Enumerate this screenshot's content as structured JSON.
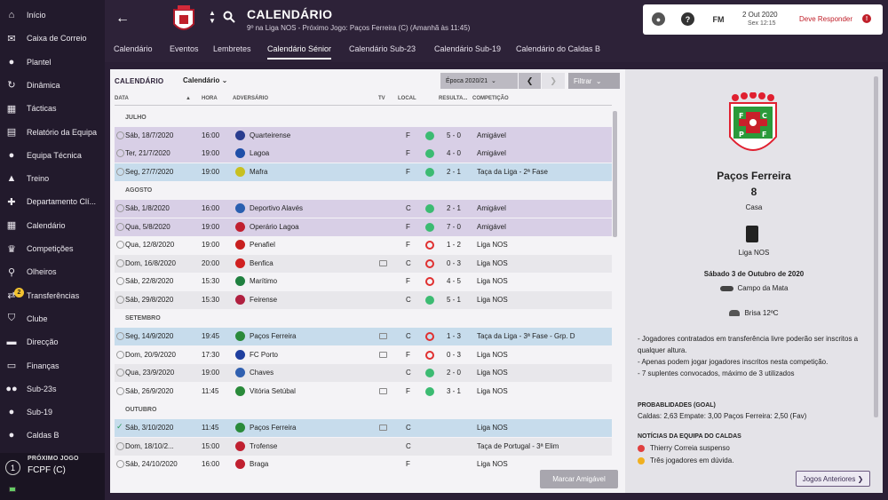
{
  "sidebar": {
    "items": [
      {
        "label": "Início",
        "icon": "home-icon"
      },
      {
        "label": "Caixa de Correio",
        "icon": "inbox-icon"
      },
      {
        "label": "Plantel",
        "icon": "squad-icon"
      },
      {
        "label": "Dinâmica",
        "icon": "dynamics-icon"
      },
      {
        "label": "Tácticas",
        "icon": "tactics-icon"
      },
      {
        "label": "Relatório da Equipa",
        "icon": "report-icon"
      },
      {
        "label": "Equipa Técnica",
        "icon": "staff-icon"
      },
      {
        "label": "Treino",
        "icon": "training-icon"
      },
      {
        "label": "Departamento Clí...",
        "icon": "medical-icon"
      },
      {
        "label": "Calendário",
        "icon": "calendar-icon"
      },
      {
        "label": "Competições",
        "icon": "trophy-icon"
      },
      {
        "label": "Olheiros",
        "icon": "scouting-icon"
      },
      {
        "label": "Transferências",
        "icon": "transfers-icon",
        "badge": "2"
      },
      {
        "label": "Clube",
        "icon": "club-icon"
      },
      {
        "label": "Direcção",
        "icon": "board-icon"
      },
      {
        "label": "Finanças",
        "icon": "finances-icon"
      },
      {
        "label": "Sub-23s",
        "icon": "u23-icon"
      },
      {
        "label": "Sub-19",
        "icon": "u19-icon"
      },
      {
        "label": "Caldas B",
        "icon": "reserve-icon"
      }
    ],
    "next_match": {
      "label": "PRÓXIMO JOGO",
      "opponent": "FCPF (C)"
    }
  },
  "header": {
    "title": "CALENDÁRIO",
    "subtitle": "9º na Liga NOS - Próximo Jogo: Paços Ferreira (C) (Amanhã às 11:45)",
    "date": "2 Out 2020",
    "time": "Sex 12:15",
    "respond": "Deve Responder",
    "fm": "FM"
  },
  "tabs": [
    "Calendário",
    "Eventos",
    "Lembretes",
    "Calendário Sénior",
    "Calendário Sub-23",
    "Calendário Sub-19",
    "Calendário do Caldas B"
  ],
  "active_tab": 3,
  "panel": {
    "title": "CALENDÁRIO",
    "view": "Calendário",
    "season": "Época 2020/21",
    "filter": "Filtrar",
    "friendly_button": "Marcar Amigável",
    "columns": {
      "date": "DATA",
      "time": "HORA",
      "opponent": "ADVERSÁRIO",
      "tv": "TV",
      "venue": "LOCAL",
      "result": "RESULTA...",
      "competition": "COMPETIÇÃO"
    }
  },
  "fixtures": [
    {
      "type": "month",
      "label": "JULHO"
    },
    {
      "type": "row",
      "bg": "p",
      "date": "Sáb, 18/7/2020",
      "time": "16:00",
      "opponent": "Quarteirense",
      "crest": "#2a3d8f",
      "tv": false,
      "venue": "F",
      "res": "fill",
      "score": "5 - 0",
      "comp": "Amigável"
    },
    {
      "type": "row",
      "bg": "p",
      "date": "Ter, 21/7/2020",
      "time": "19:00",
      "opponent": "Lagoa",
      "crest": "#1f4fa8",
      "tv": false,
      "venue": "F",
      "res": "fill",
      "score": "4 - 0",
      "comp": "Amigável"
    },
    {
      "type": "row",
      "bg": "b",
      "date": "Seg, 27/7/2020",
      "time": "19:00",
      "opponent": "Mafra",
      "crest": "#c8c020",
      "tv": false,
      "venue": "F",
      "res": "fill",
      "score": "2 - 1",
      "comp": "Taça da Liga - 2ª Fase"
    },
    {
      "type": "month",
      "label": "AGOSTO"
    },
    {
      "type": "row",
      "bg": "p",
      "date": "Sáb, 1/8/2020",
      "time": "16:00",
      "opponent": "Deportivo Alavés",
      "crest": "#2a5fb0",
      "tv": false,
      "venue": "C",
      "res": "fill",
      "score": "2 - 1",
      "comp": "Amigável"
    },
    {
      "type": "row",
      "bg": "p",
      "date": "Qua, 5/8/2020",
      "time": "19:00",
      "opponent": "Operário Lagoa",
      "crest": "#c02030",
      "tv": false,
      "venue": "F",
      "res": "fill",
      "score": "7 - 0",
      "comp": "Amigável"
    },
    {
      "type": "row",
      "bg": "w",
      "date": "Qua, 12/8/2020",
      "time": "19:00",
      "opponent": "Penafiel",
      "crest": "#c82020",
      "tv": false,
      "venue": "F",
      "res": "ring",
      "score": "1 - 2",
      "comp": "Liga NOS"
    },
    {
      "type": "row",
      "bg": "g",
      "date": "Dom, 16/8/2020",
      "time": "20:00",
      "opponent": "Benfica",
      "crest": "#d02020",
      "tv": true,
      "venue": "C",
      "res": "ring",
      "score": "0 - 3",
      "comp": "Liga NOS"
    },
    {
      "type": "row",
      "bg": "w",
      "date": "Sáb, 22/8/2020",
      "time": "15:30",
      "opponent": "Marítimo",
      "crest": "#208040",
      "tv": false,
      "venue": "F",
      "res": "ring",
      "score": "4 - 5",
      "comp": "Liga NOS"
    },
    {
      "type": "row",
      "bg": "g",
      "date": "Sáb, 29/8/2020",
      "time": "15:30",
      "opponent": "Feirense",
      "crest": "#b02040",
      "tv": false,
      "venue": "C",
      "res": "fill",
      "score": "5 - 1",
      "comp": "Liga NOS"
    },
    {
      "type": "month",
      "label": "SETEMBRO"
    },
    {
      "type": "row",
      "bg": "b",
      "date": "Seg, 14/9/2020",
      "time": "19:45",
      "opponent": "Paços Ferreira",
      "crest": "#2a8a3a",
      "tv": true,
      "venue": "C",
      "res": "ring",
      "score": "1 - 3",
      "comp": "Taça da Liga - 3ª Fase - Grp. D"
    },
    {
      "type": "row",
      "bg": "w",
      "date": "Dom, 20/9/2020",
      "time": "17:30",
      "opponent": "FC Porto",
      "crest": "#1f3f9f",
      "tv": true,
      "venue": "F",
      "res": "ring",
      "score": "0 - 3",
      "comp": "Liga NOS"
    },
    {
      "type": "row",
      "bg": "g",
      "date": "Qua, 23/9/2020",
      "time": "19:00",
      "opponent": "Chaves",
      "crest": "#3060b0",
      "tv": false,
      "venue": "C",
      "res": "fill",
      "score": "2 - 0",
      "comp": "Liga NOS"
    },
    {
      "type": "row",
      "bg": "w",
      "date": "Sáb, 26/9/2020",
      "time": "11:45",
      "opponent": "Vitória Setúbal",
      "crest": "#2a8a3a",
      "tv": true,
      "venue": "F",
      "res": "fill",
      "score": "3 - 1",
      "comp": "Liga NOS"
    },
    {
      "type": "month",
      "label": "OUTUBRO"
    },
    {
      "type": "row",
      "bg": "b",
      "date": "Sáb, 3/10/2020",
      "time": "11:45",
      "opponent": "Paços Ferreira",
      "crest": "#2a8a3a",
      "tv": true,
      "venue": "C",
      "res": "none",
      "score": "",
      "comp": "Liga NOS",
      "checked": true
    },
    {
      "type": "row",
      "bg": "g",
      "date": "Dom, 18/10/2...",
      "time": "15:00",
      "opponent": "Trofense",
      "crest": "#c02030",
      "tv": false,
      "venue": "C",
      "res": "none",
      "score": "",
      "comp": "Taça de Portugal - 3ª Elim"
    },
    {
      "type": "row",
      "bg": "w",
      "date": "Sáb, 24/10/2020",
      "time": "16:00",
      "opponent": "Braga",
      "crest": "#c02030",
      "tv": false,
      "venue": "F",
      "res": "none",
      "score": "",
      "comp": "Liga NOS"
    }
  ],
  "preview": {
    "crest_letters": [
      "F",
      "C",
      "P",
      "F"
    ],
    "name": "Paços Ferreira",
    "position": "8",
    "venue": "Casa",
    "league": "Liga NOS",
    "date": "Sábado 3 de Outubro de 2020",
    "stadium": "Campo da Mata",
    "weather": "Brisa 12ºC",
    "rules": [
      "- Jogadores contratados em transferência livre poderão ser inscritos a qualquer altura.",
      "- Apenas podem jogar jogadores inscritos nesta competição.",
      "- 7 suplentes convocados, máximo de 3 utilizados"
    ],
    "probabilities_title": "PROBABLIDADES (GOAL)",
    "probabilities": "Caldas: 2,63 Empate: 3,00 Paços Ferreira: 2,50 (Fav)",
    "news_title": "NOTÍCIAS DA EQUIPA DO CALDAS",
    "news": [
      {
        "text": "Thierry Correia suspenso",
        "color": "#e04040"
      },
      {
        "text": "Três jogadores em dúvida.",
        "color": "#f0b020"
      }
    ],
    "prev_button": "Jogos Anteriores"
  },
  "colors": {
    "accent": "#2d2238",
    "win": "#3cbb72",
    "loss": "#e03030"
  }
}
